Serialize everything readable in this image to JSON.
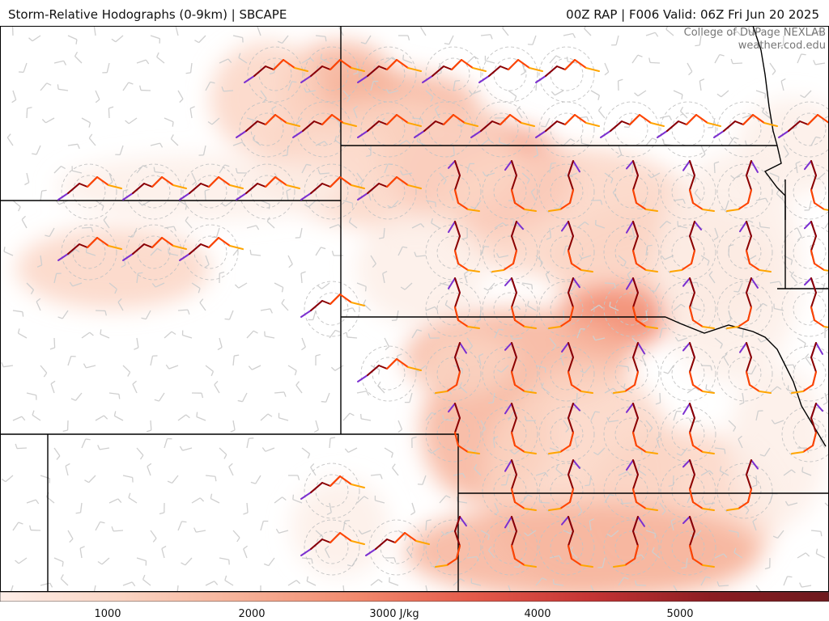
{
  "header": {
    "title": "Storm-Relative Hodographs (0-9km) | SBCAPE",
    "run_info": "00Z RAP | F006 Valid: 06Z Fri Jun 20 2025"
  },
  "credit": {
    "line1": "College of DuPage NEXLAB",
    "line2": "weather.cod.edu"
  },
  "colorbar": {
    "unit": "J/kg",
    "ticks": [
      "1000",
      "2000",
      "3000 J/kg",
      "4000",
      "5000"
    ],
    "colors": [
      "#fdeee8",
      "#fbd5c4",
      "#f7b39a",
      "#f28a6e",
      "#e45a4a",
      "#c43434",
      "#8c1d22",
      "#6e1a1e"
    ]
  },
  "legend_colors": {
    "hodo_0_1km": "#7b2fd0",
    "hodo_1_3km": "#8b0000",
    "hodo_3_6km": "#ff4500",
    "hodo_6_9km": "#ffa500",
    "wind_barb": "#c8c8c8"
  }
}
